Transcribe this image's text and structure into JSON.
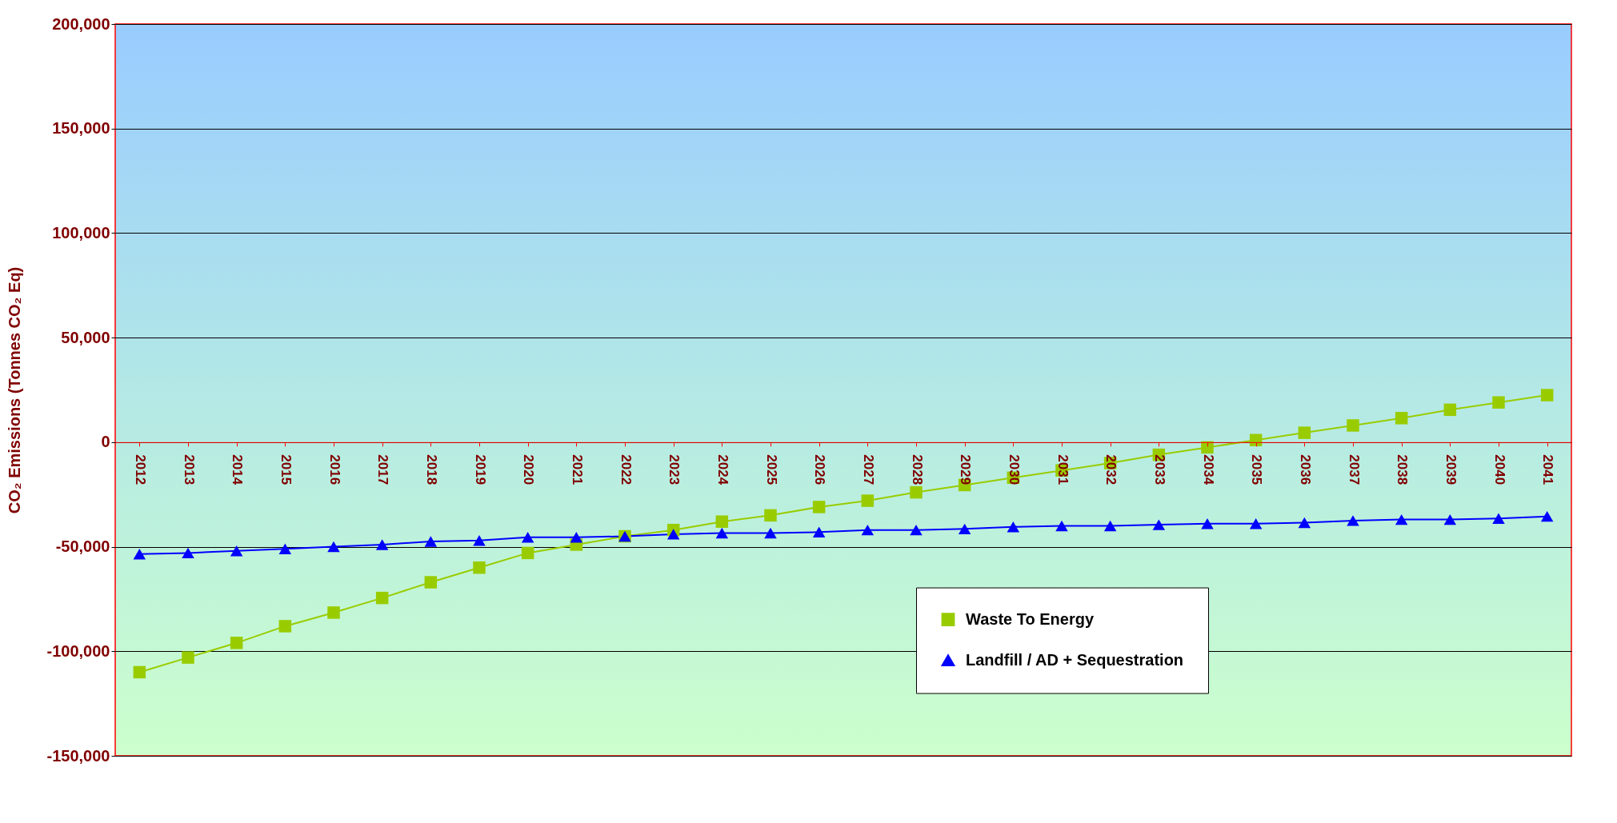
{
  "chart_data": {
    "type": "line",
    "ylabel": "CO₂ Emissions (Tonnes CO₂ Eq)",
    "categories": [
      "2012",
      "2013",
      "2014",
      "2015",
      "2016",
      "2017",
      "2018",
      "2019",
      "2020",
      "2021",
      "2022",
      "2023",
      "2024",
      "2025",
      "2026",
      "2027",
      "2028",
      "2029",
      "2030",
      "2031",
      "2032",
      "2033",
      "2034",
      "2035",
      "2036",
      "2037",
      "2038",
      "2039",
      "2040",
      "2041"
    ],
    "series": [
      {
        "name": "Waste To Energy",
        "color": "#99cc00",
        "marker": "square",
        "values": [
          -110000,
          -103000,
          -96000,
          -88000,
          -81500,
          -74500,
          -67000,
          -60000,
          -53000,
          -49000,
          -45000,
          -42000,
          -38000,
          -35000,
          -31000,
          -28000,
          -24000,
          -20500,
          -17000,
          -13500,
          -10000,
          -6000,
          -2500,
          1000,
          4500,
          8000,
          11500,
          15500,
          19000,
          22500
        ]
      },
      {
        "name": "Landfill / AD + Sequestration",
        "color": "#0000ff",
        "marker": "triangle",
        "values": [
          -53500,
          -53000,
          -52000,
          -51000,
          -50000,
          -49000,
          -47500,
          -47000,
          -45500,
          -45500,
          -45000,
          -44000,
          -43500,
          -43500,
          -43000,
          -42000,
          -42000,
          -41500,
          -40500,
          -40000,
          -40000,
          -39500,
          -39000,
          -39000,
          -38500,
          -37500,
          -37000,
          -37000,
          -36500,
          -35500
        ]
      }
    ],
    "ylim": [
      -150000,
      200000
    ],
    "yticks": [
      {
        "value": -150000,
        "label": "-150,000"
      },
      {
        "value": -100000,
        "label": "-100,000"
      },
      {
        "value": -50000,
        "label": "-50,000"
      },
      0,
      {
        "value": 50000,
        "label": "50,000"
      },
      {
        "value": 100000,
        "label": "100,000"
      },
      {
        "value": 150000,
        "label": "150,000"
      },
      {
        "value": 200000,
        "label": "200,000"
      }
    ],
    "grid": "y",
    "legend": "bottom right",
    "line_style": "solid"
  }
}
